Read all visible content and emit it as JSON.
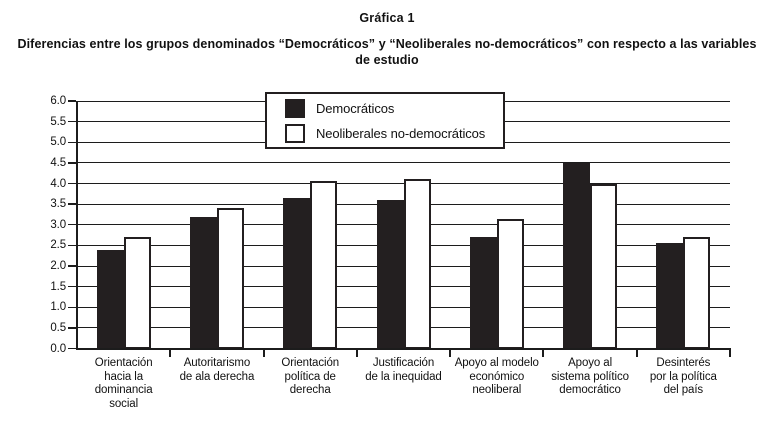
{
  "title": "Gráfica 1",
  "subtitle_lines": [
    "Diferencias entre los grupos denominados “Democráticos” y “Neoliberales no-democráticos” con respecto a las variables",
    "de estudio"
  ],
  "legend": {
    "items": [
      {
        "label": "Democráticos",
        "swatch": "black-square-icon"
      },
      {
        "label": "Neoliberales no-democráticos",
        "swatch": "white-square-icon"
      }
    ]
  },
  "colors": {
    "bar_democraticos": "#231f20",
    "bar_neoliberales": "#ffffff",
    "axis_line": "#1c1c1c",
    "background": "#ffffff"
  },
  "chart_data": {
    "type": "bar",
    "title": "Gráfica 1",
    "subtitle": "Diferencias entre los grupos denominados “Democráticos” y “Neoliberales no-democráticos” con respecto a las variables de estudio",
    "categories": [
      "Orientación hacia la dominancia social",
      "Autoritarismo de ala derecha",
      "Orientación política de derecha",
      "Justificación de la inequidad",
      "Apoyo al modelo económico neoliberal",
      "Apoyo al sistema político democrático",
      "Desinterés por la política del país"
    ],
    "category_lines": [
      [
        "Orientación",
        "hacia la",
        "dominancia",
        "social"
      ],
      [
        "Autoritarismo",
        "de ala derecha"
      ],
      [
        "Orientación",
        "política de",
        "derecha"
      ],
      [
        "Justificación",
        "de la inequidad"
      ],
      [
        "Apoyo al modelo",
        "económico",
        "neoliberal"
      ],
      [
        "Apoyo al",
        "sistema político",
        "democrático"
      ],
      [
        "Desinterés",
        "por la política",
        "del país"
      ]
    ],
    "series": [
      {
        "name": "Democráticos",
        "color": "#231f20",
        "values": [
          2.4,
          3.2,
          3.65,
          3.6,
          2.7,
          4.5,
          2.55
        ]
      },
      {
        "name": "Neoliberales no-democráticos",
        "color": "#ffffff",
        "values": [
          2.7,
          3.4,
          4.05,
          4.1,
          3.15,
          4.0,
          2.7
        ]
      }
    ],
    "xlabel": "",
    "ylabel": "",
    "ylim": [
      0,
      6
    ],
    "ytick_step": 0.5,
    "ytick_labels": [
      "0.0",
      "0.5",
      "1.0",
      "1.5",
      "2.0",
      "2.5",
      "3.0",
      "3.5",
      "4.0",
      "4.5",
      "5.0",
      "5.5",
      "6.0"
    ],
    "grid": true,
    "legend_position": "top-center-overlay"
  }
}
